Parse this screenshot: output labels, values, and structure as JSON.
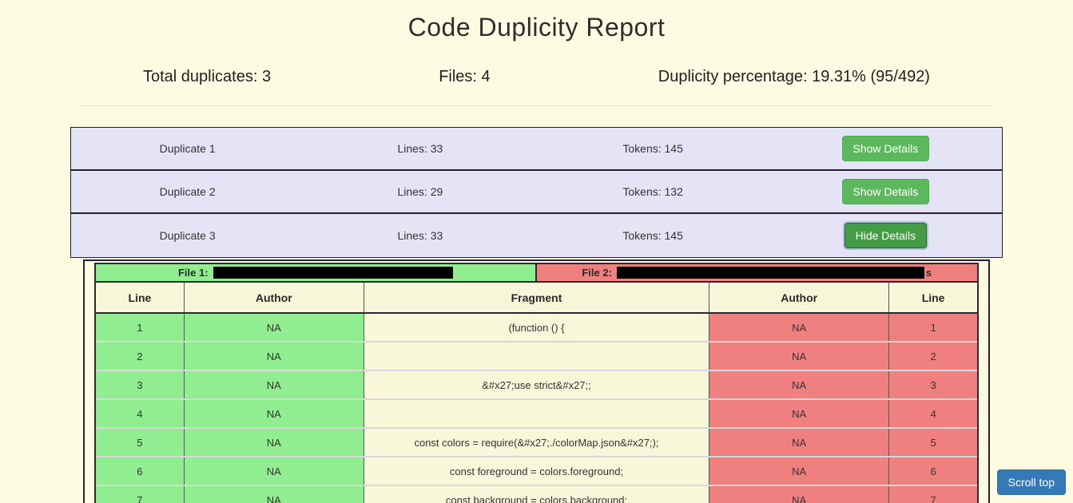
{
  "page": {
    "title": "Code Duplicity Report"
  },
  "summary": {
    "total_duplicates": "Total duplicates: 3",
    "files": "Files: 4",
    "duplicity_percentage": "Duplicity percentage: 19.31% (95/492)"
  },
  "duplicates": [
    {
      "name": "Duplicate 1",
      "lines": "Lines: 33",
      "tokens": "Tokens: 145",
      "button": "Show Details",
      "expanded": false
    },
    {
      "name": "Duplicate 2",
      "lines": "Lines: 29",
      "tokens": "Tokens: 132",
      "button": "Show Details",
      "expanded": false
    },
    {
      "name": "Duplicate 3",
      "lines": "Lines: 33",
      "tokens": "Tokens: 145",
      "button": "Hide Details",
      "expanded": true
    }
  ],
  "details": {
    "file1_label": "File 1:",
    "file2_label": "File 2:",
    "file1_path_redacted": true,
    "file2_path_redacted": true,
    "file2_path_suffix": "s",
    "columns": [
      "Line",
      "Author",
      "Fragment",
      "Author",
      "Line"
    ],
    "rows": [
      {
        "line1": "1",
        "author1": "NA",
        "fragment": "(function () {",
        "author2": "NA",
        "line2": "1"
      },
      {
        "line1": "2",
        "author1": "NA",
        "fragment": "",
        "author2": "NA",
        "line2": "2"
      },
      {
        "line1": "3",
        "author1": "NA",
        "fragment": "&#x27;use strict&#x27;;",
        "author2": "NA",
        "line2": "3"
      },
      {
        "line1": "4",
        "author1": "NA",
        "fragment": "",
        "author2": "NA",
        "line2": "4"
      },
      {
        "line1": "5",
        "author1": "NA",
        "fragment": "const colors = require(&#x27;./colorMap.json&#x27;);",
        "author2": "NA",
        "line2": "5"
      },
      {
        "line1": "6",
        "author1": "NA",
        "fragment": "const foreground = colors.foreground;",
        "author2": "NA",
        "line2": "6"
      },
      {
        "line1": "7",
        "author1": "NA",
        "fragment": "const background = colors.background;",
        "author2": "NA",
        "line2": "7"
      }
    ]
  },
  "scroll_top_label": "Scroll top",
  "colors": {
    "page_background": "#fdfce2",
    "row_background": "#e4e4f6",
    "button_green": "#5cb85c",
    "button_green_active": "#449d44",
    "scroll_top_blue": "#337ab7",
    "file1_green": "#90ee90",
    "file2_red": "#f08080"
  }
}
